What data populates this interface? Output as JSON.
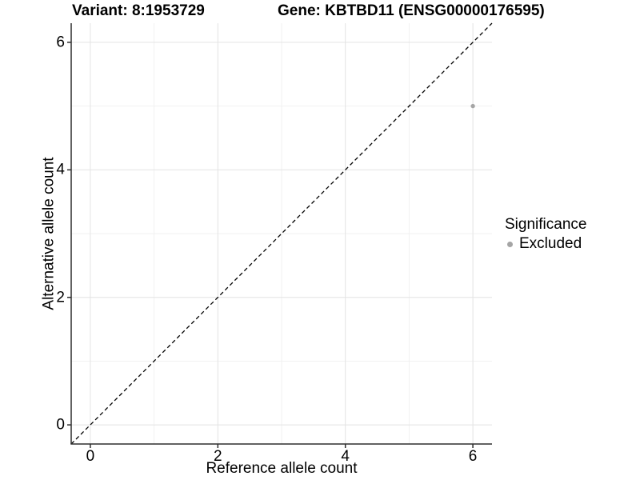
{
  "header": {
    "title_left": "Variant: 8:1953729",
    "title_right": "Gene: KBTBD11 (ENSG00000176595)"
  },
  "chart_data": {
    "type": "scatter",
    "title_left": "Variant: 8:1953729",
    "title_right": "Gene: KBTBD11 (ENSG00000176595)",
    "xlabel": "Reference allele count",
    "ylabel": "Alternative allele count",
    "xlim": [
      -0.3,
      6.3
    ],
    "ylim": [
      -0.3,
      6.3
    ],
    "x_ticks": [
      0,
      2,
      4,
      6
    ],
    "y_ticks": [
      0,
      2,
      4,
      6
    ],
    "x_minor_ticks": [
      1,
      3,
      5
    ],
    "y_minor_ticks": [
      1,
      3,
      5
    ],
    "grid": true,
    "points": [
      {
        "x": 6,
        "y": 5,
        "series": "Excluded"
      }
    ],
    "reference_line": {
      "type": "identity",
      "style": "dashed",
      "equation": "y = x"
    },
    "legend": {
      "title": "Significance",
      "position": "right",
      "entries": [
        {
          "label": "Excluded",
          "color": "#a5a5a5"
        }
      ]
    },
    "colors": {
      "point": "#a5a5a5",
      "grid_major": "#e3e3e3",
      "grid_minor": "#f1f1f1",
      "axis": "#2e2e2e",
      "reference_line": "#000000",
      "text": "#000000"
    }
  }
}
